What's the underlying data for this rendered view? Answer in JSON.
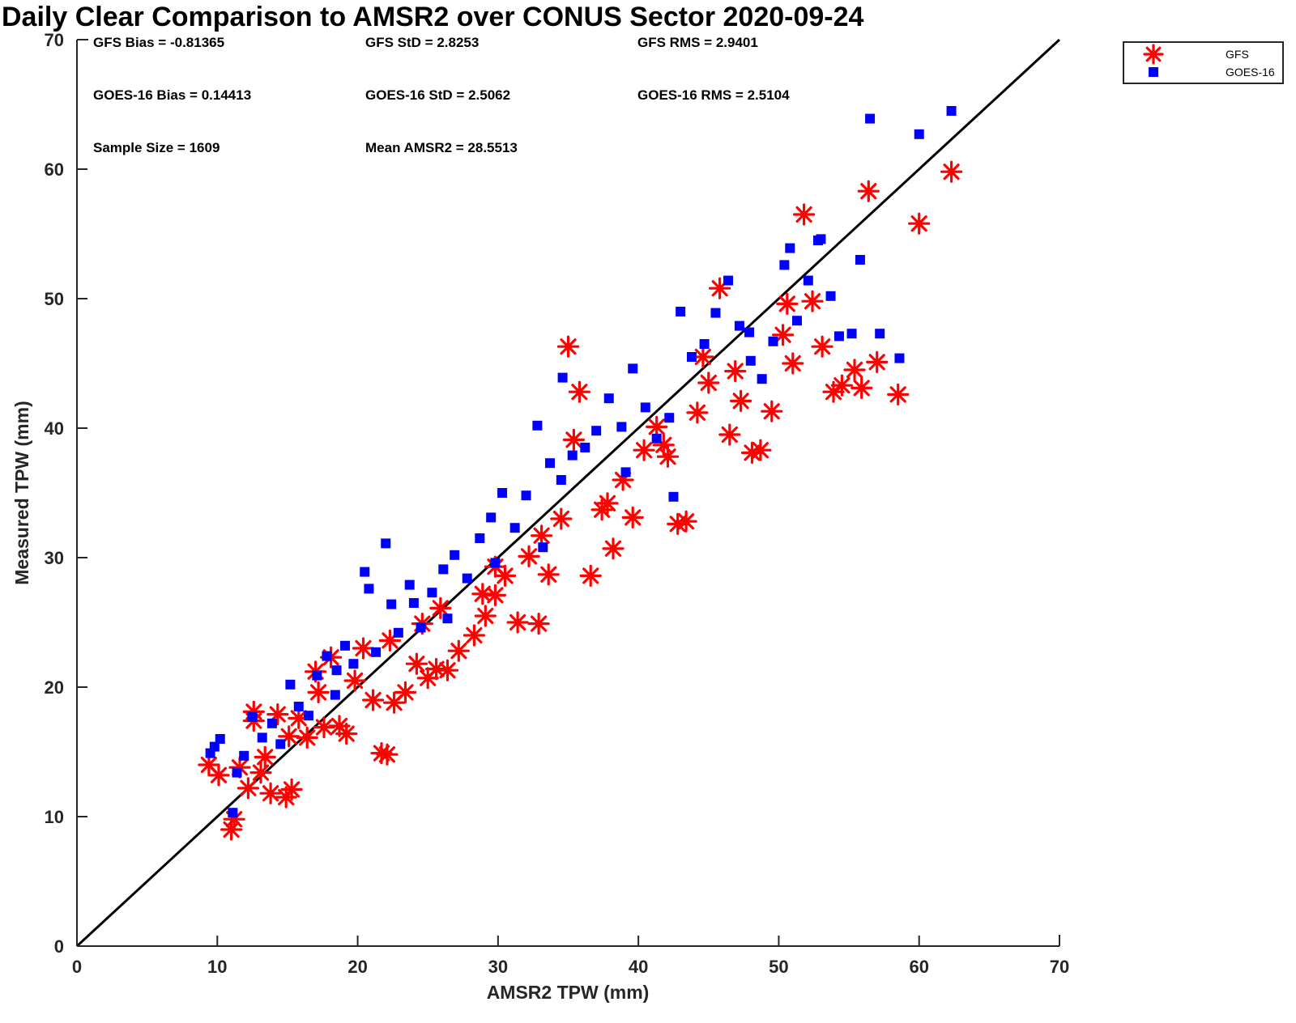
{
  "chart_data": {
    "type": "scatter",
    "title": "Daily Clear Comparison to AMSR2 over CONUS Sector 2020-09-24",
    "xlabel": "AMSR2 TPW (mm)",
    "ylabel": "Measured TPW (mm)",
    "xlim": [
      0,
      70
    ],
    "ylim": [
      0,
      70
    ],
    "xticks": [
      0,
      10,
      20,
      30,
      40,
      50,
      60,
      70
    ],
    "yticks": [
      0,
      10,
      20,
      30,
      40,
      50,
      60,
      70
    ],
    "grid": false,
    "legend_position": "top-right outside",
    "reference_line": {
      "x": [
        0,
        70
      ],
      "y": [
        0,
        70
      ]
    },
    "annotations": [
      "GFS Bias = -0.81365",
      "GFS StD = 2.8253",
      "GFS RMS = 2.9401",
      "GOES-16 Bias = 0.14413",
      "GOES-16 StD = 2.5062",
      "GOES-16 RMS = 2.5104",
      "Sample Size = 1609",
      "Mean AMSR2 = 28.5513"
    ],
    "series": [
      {
        "name": "GFS",
        "marker": "asterisk",
        "color": "#ff0000",
        "x": [
          9.4,
          10.1,
          11.0,
          11.2,
          11.6,
          12.2,
          12.6,
          13.1,
          13.8,
          14.3,
          14.9,
          15.3,
          15.8,
          16.4,
          17.0,
          17.6,
          18.1,
          18.7,
          19.2,
          19.8,
          20.4,
          21.1,
          21.7,
          22.1,
          22.6,
          23.4,
          24.2,
          25.0,
          25.9,
          26.4,
          27.2,
          28.3,
          29.1,
          29.8,
          30.5,
          31.4,
          32.2,
          32.9,
          33.6,
          34.5,
          35.0,
          35.8,
          36.6,
          37.4,
          38.2,
          38.9,
          39.6,
          40.4,
          41.3,
          42.1,
          42.8,
          43.4,
          44.2,
          45.0,
          45.8,
          46.5,
          47.3,
          48.1,
          48.7,
          49.5,
          50.3,
          51.0,
          51.8,
          52.4,
          53.1,
          53.9,
          54.5,
          55.4,
          55.9,
          56.4,
          57.0,
          58.5,
          60.0,
          62.3,
          35.4,
          29.8,
          22.3,
          25.6,
          33.1,
          37.8,
          41.8,
          46.9,
          50.6,
          17.2,
          13.4,
          15.1,
          24.6,
          28.9,
          44.6,
          12.6
        ],
        "y": [
          14.0,
          13.2,
          9.0,
          9.8,
          13.8,
          12.2,
          18.1,
          13.4,
          11.8,
          17.9,
          11.5,
          12.1,
          17.6,
          16.1,
          21.2,
          16.9,
          22.3,
          17.0,
          16.4,
          20.5,
          23.0,
          19.0,
          14.9,
          14.8,
          18.8,
          19.6,
          21.8,
          20.7,
          26.1,
          21.3,
          22.8,
          24.0,
          25.5,
          27.1,
          28.6,
          25.0,
          30.1,
          24.9,
          28.7,
          33.0,
          46.3,
          42.8,
          28.6,
          33.7,
          30.7,
          36.0,
          33.1,
          38.3,
          40.1,
          37.8,
          32.6,
          32.8,
          41.2,
          43.5,
          50.8,
          39.5,
          42.1,
          38.1,
          38.3,
          41.3,
          47.2,
          45.0,
          56.5,
          49.8,
          46.3,
          42.8,
          43.3,
          44.5,
          43.1,
          58.3,
          45.1,
          42.6,
          55.8,
          59.8,
          39.1,
          29.3,
          23.6,
          21.4,
          31.7,
          34.2,
          38.7,
          44.4,
          49.6,
          19.6,
          14.6,
          16.2,
          24.9,
          27.2,
          45.5,
          17.4
        ]
      },
      {
        "name": "GOES-16",
        "marker": "square",
        "color": "#0000ff",
        "x": [
          9.5,
          9.8,
          10.2,
          11.1,
          11.4,
          11.9,
          12.5,
          13.2,
          13.9,
          14.5,
          15.2,
          15.8,
          16.5,
          17.1,
          17.8,
          18.4,
          19.1,
          19.7,
          20.5,
          20.8,
          21.3,
          22.0,
          22.4,
          22.9,
          23.7,
          24.5,
          25.3,
          26.1,
          26.9,
          27.8,
          28.7,
          29.5,
          30.3,
          31.2,
          32.0,
          32.8,
          33.7,
          34.5,
          35.3,
          36.2,
          37.0,
          37.9,
          38.8,
          39.6,
          40.5,
          41.3,
          42.2,
          43.0,
          43.8,
          44.7,
          45.5,
          46.4,
          47.2,
          48.0,
          48.8,
          49.6,
          50.4,
          51.3,
          52.1,
          52.8,
          53.7,
          54.3,
          55.2,
          55.8,
          56.5,
          57.2,
          58.6,
          60.0,
          62.3,
          42.5,
          34.6,
          29.8,
          18.5,
          26.4,
          47.9,
          39.1,
          33.2,
          24.0,
          50.8,
          53.0
        ],
        "y": [
          14.9,
          15.4,
          16.0,
          10.3,
          13.4,
          14.7,
          17.7,
          16.1,
          17.2,
          15.6,
          20.2,
          18.5,
          17.8,
          20.9,
          22.4,
          19.4,
          23.2,
          21.8,
          28.9,
          27.6,
          22.7,
          31.1,
          26.4,
          24.2,
          27.9,
          24.6,
          27.3,
          29.1,
          30.2,
          28.4,
          31.5,
          33.1,
          35.0,
          32.3,
          34.8,
          40.2,
          37.3,
          36.0,
          37.9,
          38.5,
          39.8,
          42.3,
          40.1,
          44.6,
          41.6,
          39.2,
          40.8,
          49.0,
          45.5,
          46.5,
          48.9,
          51.4,
          47.9,
          45.2,
          43.8,
          46.7,
          52.6,
          48.3,
          51.4,
          54.5,
          50.2,
          47.1,
          47.3,
          53.0,
          63.9,
          47.3,
          45.4,
          62.7,
          64.5,
          34.7,
          43.9,
          29.6,
          21.3,
          25.3,
          47.4,
          36.6,
          30.8,
          26.5,
          53.9,
          54.6
        ]
      }
    ]
  }
}
